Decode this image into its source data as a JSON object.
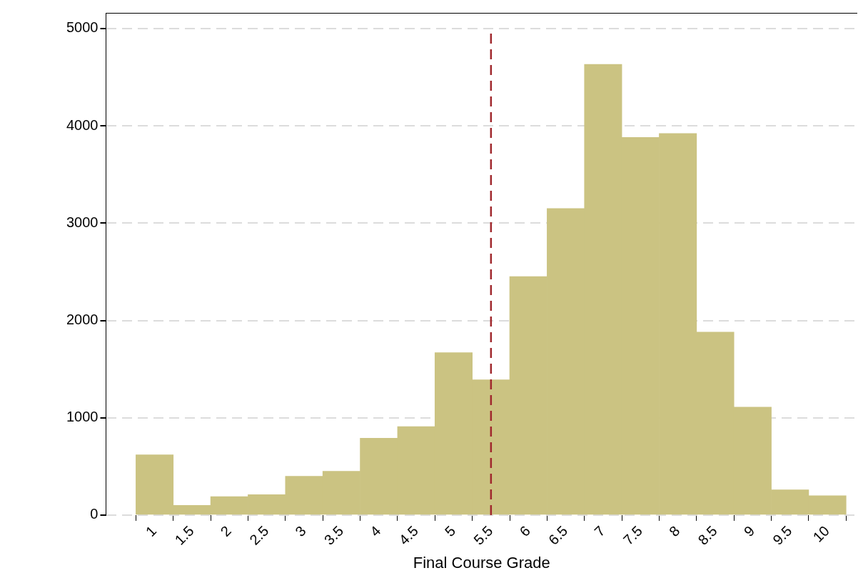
{
  "chart_data": {
    "type": "histogram",
    "xlabel": "Final Course Grade",
    "bins": [
      0.75,
      1.25,
      1.75,
      2.25,
      2.75,
      3.25,
      3.75,
      4.25,
      4.75,
      5.25,
      5.75,
      6.25,
      6.75,
      7.25,
      7.75,
      8.25,
      8.75,
      9.25,
      9.75,
      10.25
    ],
    "values": [
      620,
      100,
      190,
      210,
      400,
      450,
      790,
      910,
      1670,
      1390,
      2450,
      3150,
      4630,
      3880,
      3920,
      1880,
      1110,
      260,
      200
    ],
    "color": "#cbc382",
    "xlim": [
      0.35,
      10.4
    ],
    "xticks": [
      1,
      1.5,
      2,
      2.5,
      3,
      3.5,
      4,
      4.5,
      5,
      5.5,
      6,
      6.5,
      7,
      7.5,
      8,
      8.5,
      9,
      9.5,
      10
    ],
    "ylim": [
      0,
      5160
    ],
    "yticks": [
      0,
      1000,
      2000,
      3000,
      4000,
      5000
    ],
    "grid": "y",
    "legend": false,
    "ref_lines": [
      {
        "axis": "x",
        "value": 5.5,
        "color": "#a0282d",
        "line_style": "dashed"
      }
    ]
  }
}
